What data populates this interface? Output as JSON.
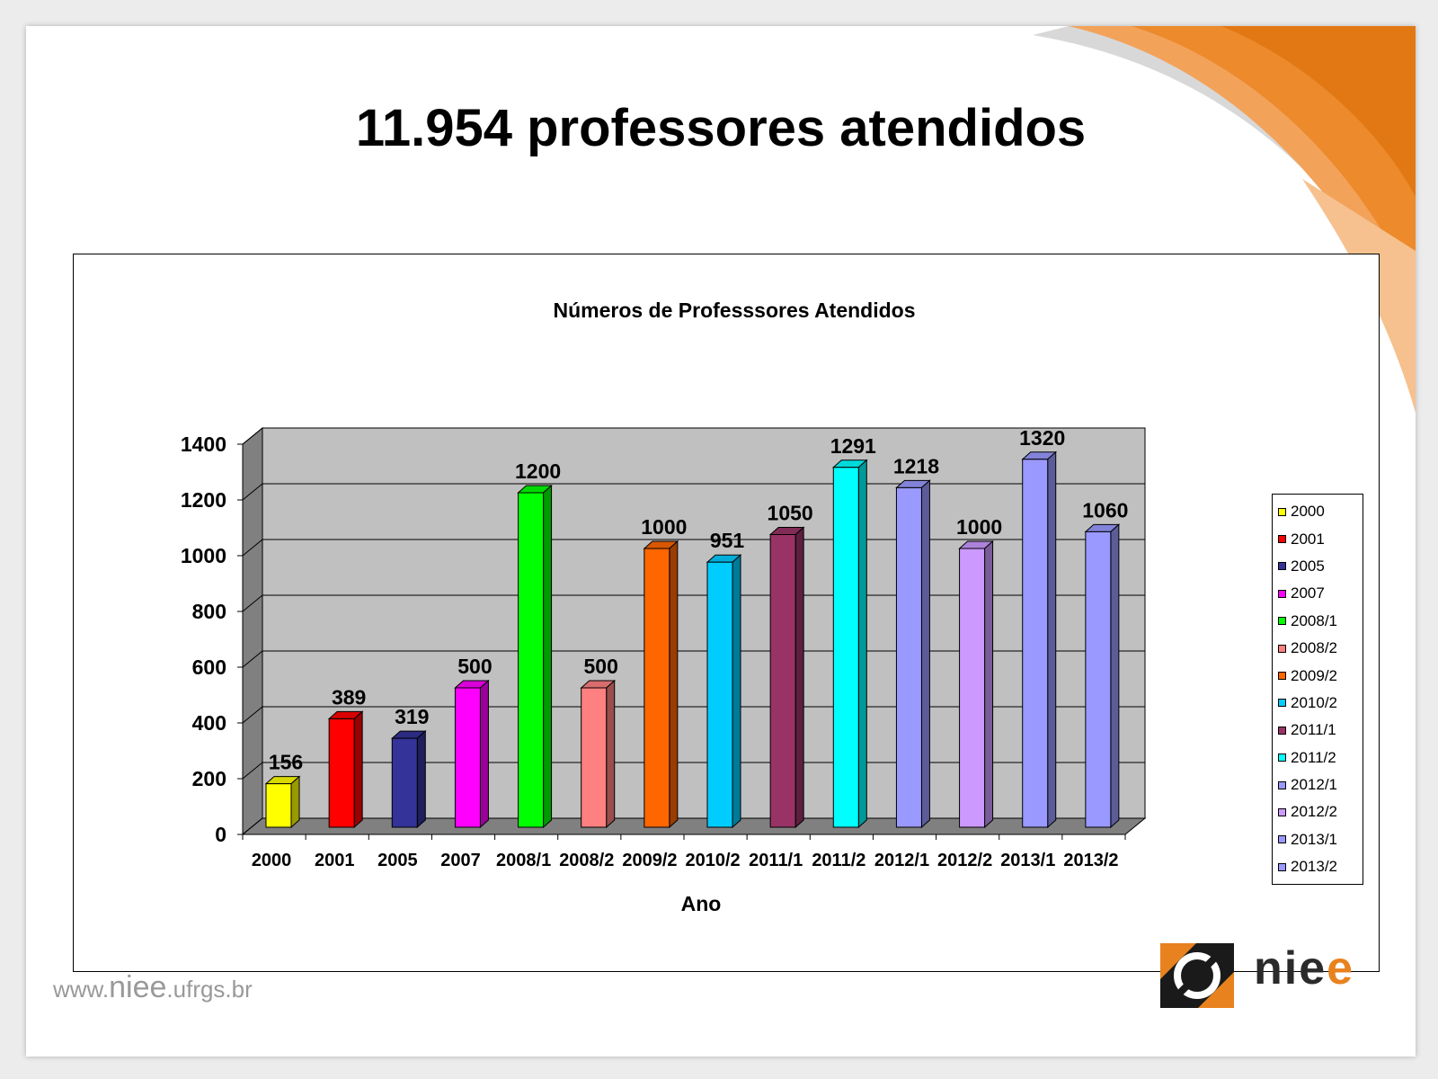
{
  "slide": {
    "title": "11.954 professores atendidos"
  },
  "footer": {
    "url_prefix": "www.",
    "url_brand": "niee",
    "url_suffix": ".ufrgs.br"
  },
  "logo": {
    "text_main": "nie",
    "text_accent": "e"
  },
  "colors": {
    "accent_orange": "#e8821e",
    "plot_wall": "#c0c0c0",
    "plot_floor": "#808080"
  },
  "chart_data": {
    "type": "bar",
    "title": "Números de Professsores Atendidos",
    "xlabel": "Ano",
    "ylabel": "",
    "ylim": [
      0,
      1400
    ],
    "yticks": [
      0,
      200,
      400,
      600,
      800,
      1000,
      1200,
      1400
    ],
    "grid": true,
    "legend_position": "right",
    "categories": [
      "2000",
      "2001",
      "2005",
      "2007",
      "2008/1",
      "2008/2",
      "2009/2",
      "2010/2",
      "2011/1",
      "2011/2",
      "2012/1",
      "2012/2",
      "2013/1",
      "2013/2"
    ],
    "series": [
      {
        "values": [
          156,
          389,
          319,
          500,
          1200,
          500,
          1000,
          951,
          1050,
          1291,
          1218,
          1000,
          1320,
          1060
        ],
        "colors": [
          "#ffff00",
          "#ff0000",
          "#333399",
          "#ff00ff",
          "#00ff00",
          "#ff8080",
          "#ff6600",
          "#00ccff",
          "#993366",
          "#00ffff",
          "#9999ff",
          "#cc99ff",
          "#9999ff",
          "#9999ff"
        ]
      }
    ]
  }
}
